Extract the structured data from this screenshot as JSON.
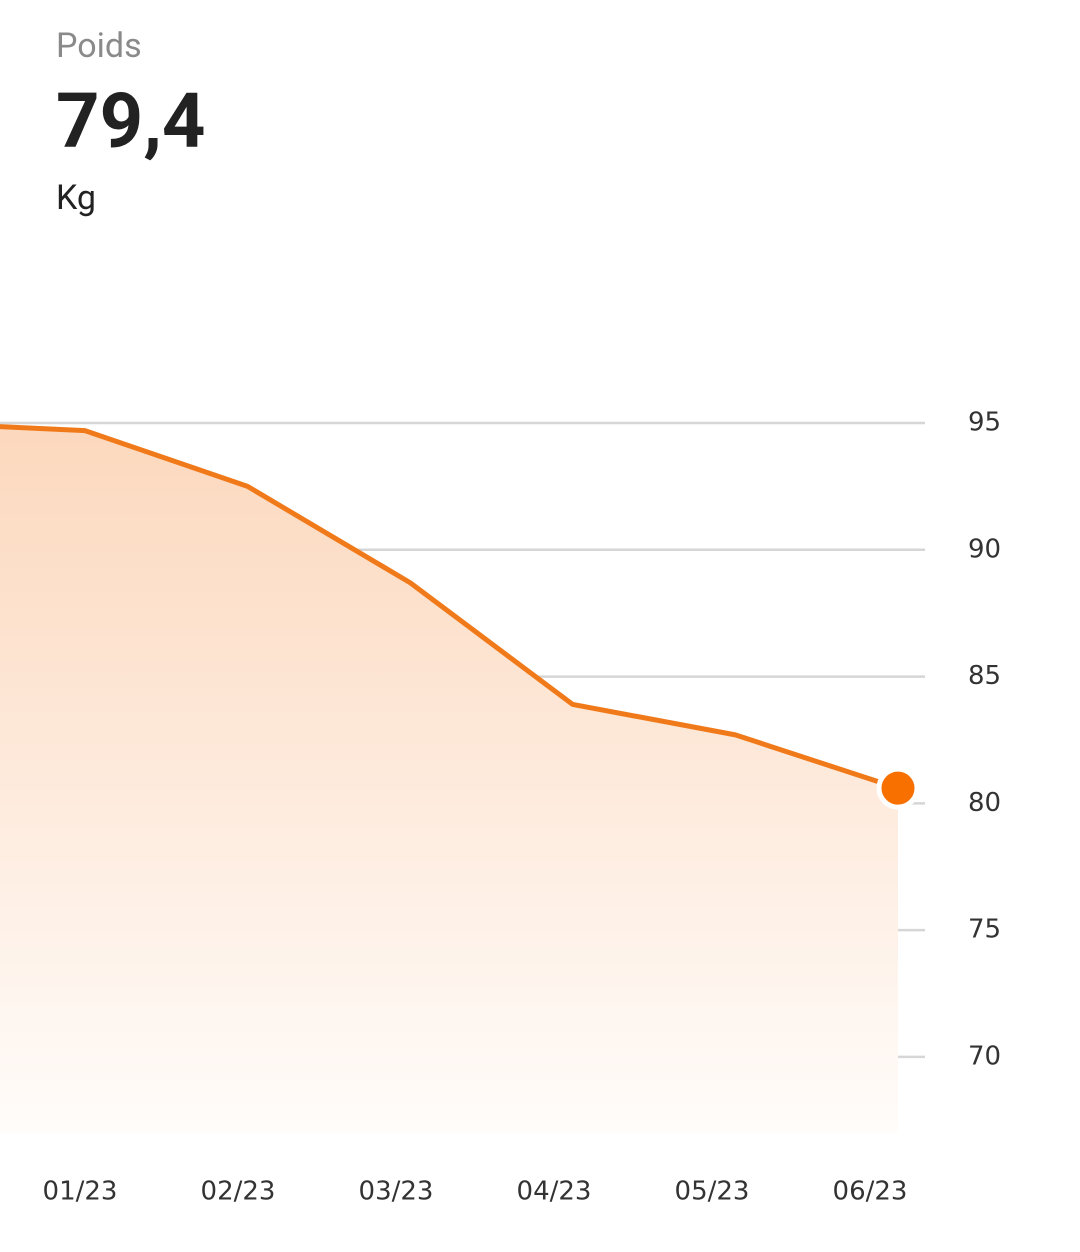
{
  "header": {
    "label": "Poids",
    "value": "79,4",
    "unit": "Kg"
  },
  "chart_data": {
    "type": "area",
    "categories": [
      null,
      "01/23",
      "02/23",
      "03/23",
      "04/23",
      "05/23",
      "06/23"
    ],
    "series": [
      {
        "color": "#f07a1a",
        "values": [
          95.0,
          94.7,
          92.5,
          88.7,
          83.9,
          82.7,
          80.6
        ]
      }
    ],
    "ylim": [
      67,
      95
    ],
    "yticks": [
      70,
      75,
      80,
      85,
      90,
      95
    ],
    "grid": true,
    "marker_last": true
  }
}
